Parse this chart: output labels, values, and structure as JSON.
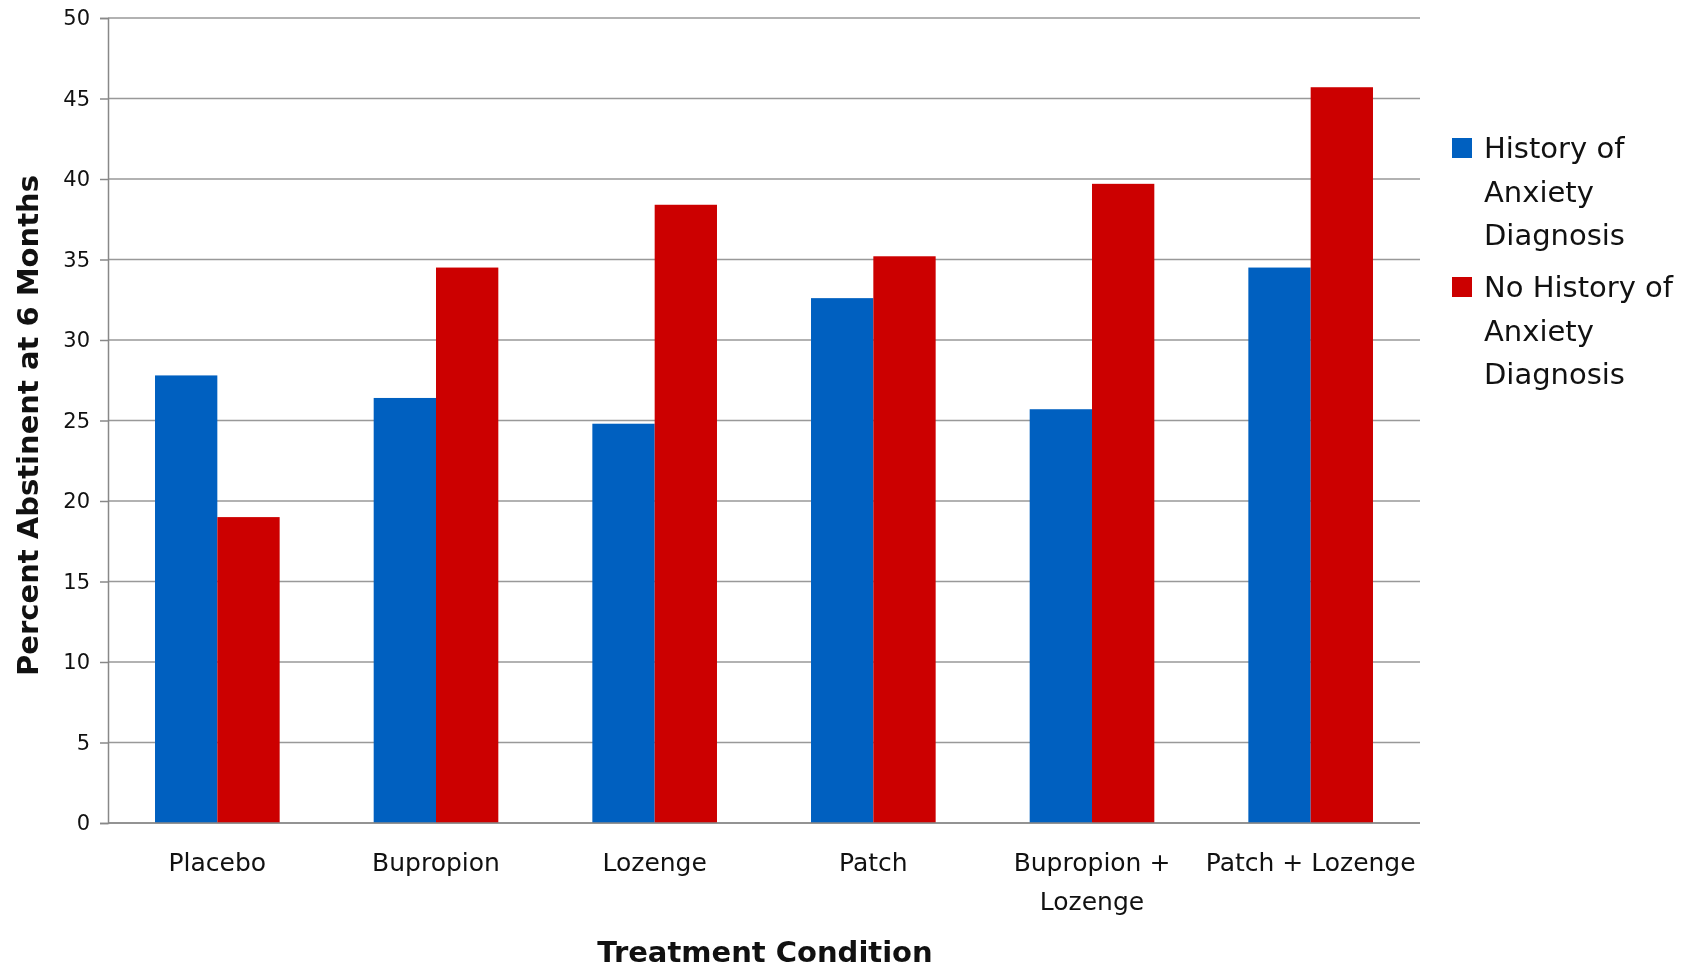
{
  "chart_data": {
    "type": "bar",
    "xlabel": "Treatment Condition",
    "ylabel": "Percent Abstinent at 6 Months",
    "categories": [
      "Placebo",
      "Bupropion",
      "Lozenge",
      "Patch",
      "Bupropion + Lozenge",
      "Patch + Lozenge"
    ],
    "series": [
      {
        "name": "History of Anxiety Diagnosis",
        "color": "#0060c0",
        "values": [
          27.8,
          26.4,
          24.8,
          32.6,
          25.7,
          34.5
        ]
      },
      {
        "name": "No History of Anxiety Diagnosis",
        "color": "#cc0000",
        "values": [
          19.0,
          34.5,
          38.4,
          35.2,
          39.7,
          45.7
        ]
      }
    ],
    "ylim": [
      0,
      50
    ],
    "yticks": [
      0,
      5,
      10,
      15,
      20,
      25,
      30,
      35,
      40,
      45,
      50
    ],
    "grid": "y",
    "legend": "right"
  }
}
